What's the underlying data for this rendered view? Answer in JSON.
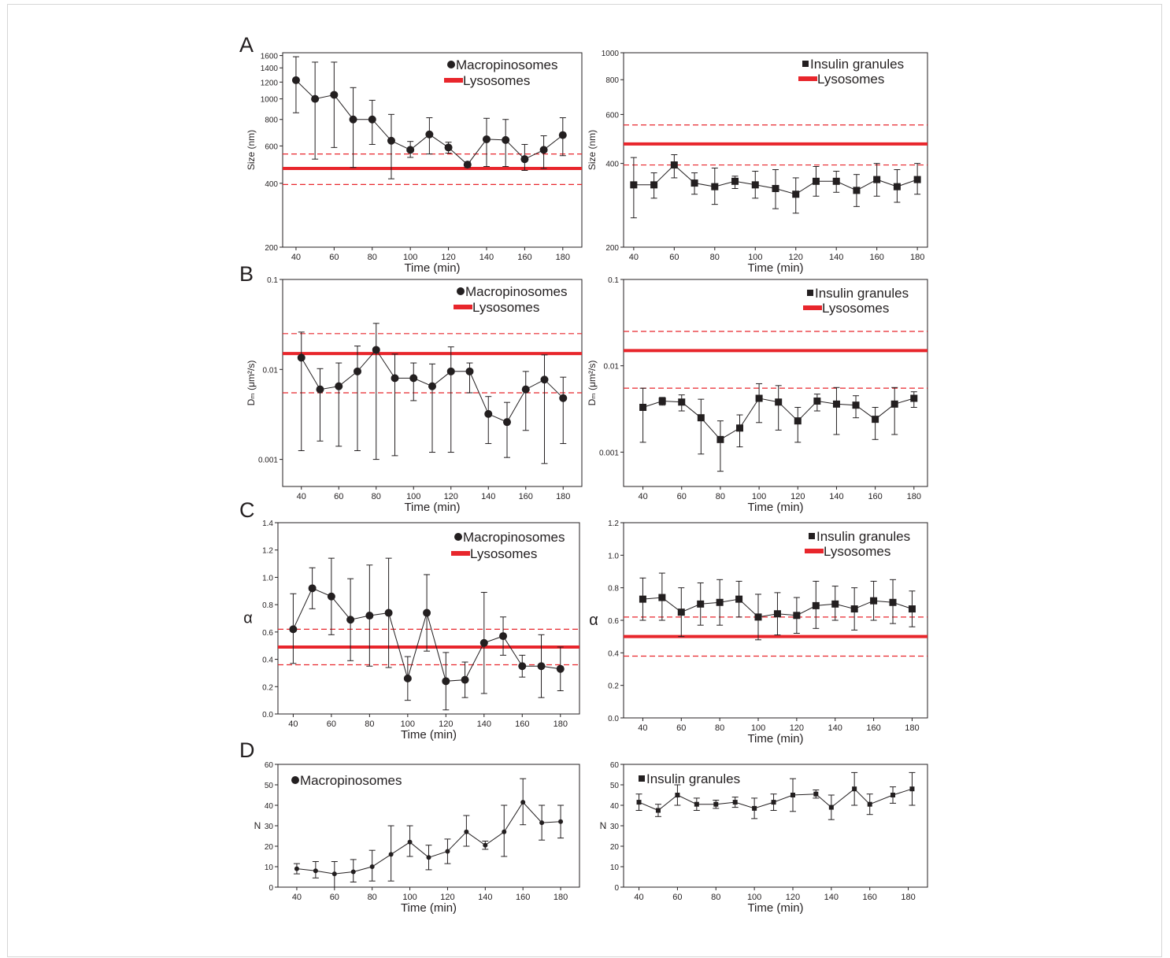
{
  "figure": {
    "panel_letters": [
      "A",
      "B",
      "C",
      "D"
    ],
    "colors": {
      "axis": "#231f20",
      "data": "#231f20",
      "lysosome": "#e8262c",
      "frame_border": "#d6d6d6"
    }
  },
  "chart_data": [
    {
      "id": "A-left",
      "panel": "A",
      "type": "line",
      "marker": "circle",
      "xlabel": "Time (min)",
      "ylabel": "Size (nm)",
      "yscale": "log",
      "xlim": [
        33,
        190
      ],
      "ylim": [
        200,
        1650
      ],
      "xticks": [
        40,
        60,
        80,
        100,
        120,
        140,
        160,
        180
      ],
      "yticks": [
        200,
        400,
        600,
        800,
        1000,
        1200,
        1400,
        1600
      ],
      "legend": [
        {
          "marker": "circle",
          "label": "Macropinosomes"
        },
        {
          "marker": "redbar",
          "label": "Lysosomes"
        }
      ],
      "lysosome": {
        "mean": 470,
        "lower": 395,
        "upper": 550
      },
      "series": [
        {
          "name": "Macropinosomes",
          "x": [
            40,
            50,
            60,
            70,
            80,
            90,
            100,
            110,
            120,
            130,
            140,
            150,
            160,
            170,
            180
          ],
          "y": [
            1225,
            1000,
            1045,
            800,
            800,
            635,
            575,
            680,
            590,
            490,
            645,
            640,
            520,
            575,
            675
          ],
          "err_low": [
            860,
            520,
            590,
            475,
            610,
            420,
            530,
            550,
            555,
            475,
            480,
            480,
            460,
            470,
            540
          ],
          "err_high": [
            1580,
            1490,
            1490,
            1130,
            985,
            845,
            630,
            815,
            625,
            505,
            810,
            800,
            610,
            670,
            815
          ]
        }
      ]
    },
    {
      "id": "A-right",
      "panel": "A",
      "type": "line",
      "marker": "square",
      "xlabel": "Time (min)",
      "ylabel": "Size (nm)",
      "yscale": "log",
      "xlim": [
        35,
        185
      ],
      "ylim": [
        200,
        1000
      ],
      "xticks": [
        40,
        60,
        80,
        100,
        120,
        140,
        160,
        180
      ],
      "yticks": [
        200,
        400,
        600,
        800,
        1000
      ],
      "legend": [
        {
          "marker": "square",
          "label": "Insulin granules"
        },
        {
          "marker": "redbar",
          "label": "Lysosomes"
        }
      ],
      "lysosome": {
        "mean": 470,
        "lower": 395,
        "upper": 550
      },
      "series": [
        {
          "name": "Insulin granules",
          "x": [
            40,
            50,
            60,
            70,
            80,
            90,
            100,
            110,
            120,
            130,
            140,
            150,
            160,
            170,
            180
          ],
          "y": [
            335,
            335,
            395,
            340,
            330,
            345,
            335,
            325,
            310,
            345,
            345,
            320,
            350,
            330,
            350
          ],
          "err_low": [
            255,
            300,
            355,
            310,
            285,
            325,
            300,
            275,
            265,
            305,
            315,
            280,
            305,
            290,
            310
          ],
          "err_high": [
            420,
            370,
            430,
            370,
            385,
            360,
            375,
            380,
            355,
            390,
            375,
            365,
            400,
            380,
            400
          ]
        }
      ]
    },
    {
      "id": "B-left",
      "panel": "B",
      "type": "line",
      "marker": "circle",
      "xlabel": "Time (min)",
      "ylabel": "Dₘ (μm²/s)",
      "yscale": "log",
      "xlim": [
        30,
        190
      ],
      "ylim": [
        0.0005,
        0.1
      ],
      "xticks": [
        40,
        60,
        80,
        100,
        120,
        140,
        160,
        180
      ],
      "yticks": [
        0.001,
        0.01,
        0.1
      ],
      "yticklabels": [
        "0.001",
        "0.01",
        "0.1"
      ],
      "legend": [
        {
          "marker": "circle",
          "label": "Macropinosomes"
        },
        {
          "marker": "redbar",
          "label": "Lysosomes"
        }
      ],
      "lysosome": {
        "mean": 0.015,
        "lower": 0.0055,
        "upper": 0.025
      },
      "series": [
        {
          "name": "Macropinosomes",
          "x": [
            40,
            50,
            60,
            70,
            80,
            90,
            100,
            110,
            120,
            130,
            140,
            150,
            160,
            170,
            180
          ],
          "y": [
            0.0135,
            0.006,
            0.0065,
            0.0095,
            0.0165,
            0.008,
            0.008,
            0.0065,
            0.0095,
            0.0095,
            0.0032,
            0.0026,
            0.006,
            0.0077,
            0.0048
          ],
          "err_low": [
            0.00125,
            0.0016,
            0.0014,
            0.00125,
            0.001,
            0.0011,
            0.0045,
            0.0012,
            0.0012,
            0.0055,
            0.0015,
            0.00105,
            0.0021,
            0.0009,
            0.0015
          ],
          "err_high": [
            0.026,
            0.0102,
            0.0118,
            0.0182,
            0.0325,
            0.0148,
            0.0118,
            0.0115,
            0.0178,
            0.0118,
            0.005,
            0.0043,
            0.0095,
            0.0145,
            0.0082
          ]
        }
      ]
    },
    {
      "id": "B-right",
      "panel": "B",
      "type": "line",
      "marker": "square",
      "xlabel": "Time (min)",
      "ylabel": "Dₘ (μm²/s)",
      "yscale": "log",
      "xlim": [
        30,
        187
      ],
      "ylim": [
        0.0004,
        0.1
      ],
      "xticks": [
        40,
        60,
        80,
        100,
        120,
        140,
        160,
        180
      ],
      "yticks": [
        0.001,
        0.01,
        0.1
      ],
      "yticklabels": [
        "0.001",
        "0.01",
        "0.1"
      ],
      "legend": [
        {
          "marker": "square",
          "label": "Insulin granules"
        },
        {
          "marker": "redbar",
          "label": "Lysosomes"
        }
      ],
      "lysosome": {
        "mean": 0.015,
        "lower": 0.0055,
        "upper": 0.025
      },
      "series": [
        {
          "name": "Insulin granules",
          "x": [
            40,
            50,
            60,
            70,
            80,
            90,
            100,
            110,
            120,
            130,
            140,
            150,
            160,
            170,
            180
          ],
          "y": [
            0.0033,
            0.0039,
            0.0038,
            0.0025,
            0.0014,
            0.0019,
            0.0042,
            0.0038,
            0.0023,
            0.0039,
            0.0036,
            0.0035,
            0.0024,
            0.0036,
            0.0042
          ],
          "err_low": [
            0.0013,
            0.0035,
            0.003,
            0.00095,
            0.0006,
            0.00115,
            0.0022,
            0.0018,
            0.0013,
            0.003,
            0.0016,
            0.0025,
            0.0014,
            0.0016,
            0.0033
          ],
          "err_high": [
            0.0055,
            0.0043,
            0.0046,
            0.0041,
            0.0023,
            0.0027,
            0.0062,
            0.0059,
            0.0033,
            0.0047,
            0.0056,
            0.0045,
            0.0033,
            0.0056,
            0.005
          ]
        }
      ]
    },
    {
      "id": "C-left",
      "panel": "C",
      "type": "line",
      "marker": "circle",
      "xlabel": "Time (min)",
      "ylabel": "α",
      "yscale": "linear",
      "xlim": [
        32,
        190
      ],
      "ylim": [
        0,
        1.4
      ],
      "xticks": [
        40,
        60,
        80,
        100,
        120,
        140,
        160,
        180
      ],
      "yticks": [
        0.0,
        0.2,
        0.4,
        0.6,
        0.8,
        1.0,
        1.2,
        1.4
      ],
      "yticklabels": [
        "0.0",
        "0.2",
        "0.4",
        "0.6",
        "0.8",
        "1.0",
        "1.2",
        "1.4"
      ],
      "legend": [
        {
          "marker": "circle",
          "label": "Macropinosomes"
        },
        {
          "marker": "redbar",
          "label": "Lysosomes"
        }
      ],
      "lysosome": {
        "mean": 0.49,
        "lower": 0.36,
        "upper": 0.62
      },
      "series": [
        {
          "name": "Macropinosomes",
          "x": [
            40,
            50,
            60,
            70,
            80,
            90,
            100,
            110,
            120,
            130,
            140,
            150,
            160,
            170,
            180
          ],
          "y": [
            0.62,
            0.92,
            0.86,
            0.69,
            0.72,
            0.74,
            0.26,
            0.74,
            0.24,
            0.25,
            0.52,
            0.57,
            0.35,
            0.35,
            0.33
          ],
          "err_low": [
            0.37,
            0.77,
            0.58,
            0.39,
            0.35,
            0.34,
            0.1,
            0.46,
            0.03,
            0.12,
            0.15,
            0.43,
            0.27,
            0.12,
            0.17
          ],
          "err_high": [
            0.88,
            1.07,
            1.14,
            0.99,
            1.09,
            1.14,
            0.42,
            1.02,
            0.45,
            0.38,
            0.89,
            0.71,
            0.43,
            0.58,
            0.49
          ]
        }
      ]
    },
    {
      "id": "C-right",
      "panel": "C",
      "type": "line",
      "marker": "square",
      "xlabel": "Time (min)",
      "ylabel": "α",
      "yscale": "linear",
      "xlim": [
        30,
        188
      ],
      "ylim": [
        0,
        1.2
      ],
      "xticks": [
        40,
        60,
        80,
        100,
        120,
        140,
        160,
        180
      ],
      "yticks": [
        0.0,
        0.2,
        0.4,
        0.6,
        0.8,
        1.0,
        1.2
      ],
      "yticklabels": [
        "0.0",
        "0.2",
        "0.4",
        "0.6",
        "0.8",
        "1.0",
        "1.2"
      ],
      "legend": [
        {
          "marker": "square",
          "label": "Insulin granules"
        },
        {
          "marker": "redbar",
          "label": "Lysosomes"
        }
      ],
      "lysosome": {
        "mean": 0.5,
        "lower": 0.38,
        "upper": 0.62
      },
      "series": [
        {
          "name": "Insulin granules",
          "x": [
            40,
            50,
            60,
            70,
            80,
            90,
            100,
            110,
            120,
            130,
            140,
            150,
            160,
            170,
            180
          ],
          "y": [
            0.73,
            0.74,
            0.65,
            0.7,
            0.71,
            0.73,
            0.62,
            0.64,
            0.63,
            0.69,
            0.7,
            0.67,
            0.72,
            0.71,
            0.67
          ],
          "err_low": [
            0.6,
            0.6,
            0.5,
            0.57,
            0.57,
            0.62,
            0.48,
            0.51,
            0.52,
            0.55,
            0.6,
            0.54,
            0.6,
            0.58,
            0.56
          ],
          "err_high": [
            0.86,
            0.89,
            0.8,
            0.83,
            0.85,
            0.84,
            0.76,
            0.77,
            0.74,
            0.84,
            0.81,
            0.8,
            0.84,
            0.85,
            0.78
          ]
        }
      ]
    },
    {
      "id": "D-left",
      "panel": "D",
      "type": "line",
      "marker": "dot",
      "xlabel": "Time (min)",
      "ylabel": "N",
      "yscale": "linear",
      "xlim": [
        30,
        190
      ],
      "ylim": [
        0,
        60
      ],
      "xticks": [
        40,
        60,
        80,
        100,
        120,
        140,
        160,
        180
      ],
      "yticks": [
        0,
        10,
        20,
        30,
        40,
        50,
        60
      ],
      "legend": [
        {
          "marker": "circle",
          "label": "Macropinosomes"
        }
      ],
      "series": [
        {
          "name": "Macropinosomes",
          "x": [
            40,
            50,
            60,
            70,
            80,
            90,
            100,
            110,
            120,
            130,
            140,
            150,
            160,
            170,
            180
          ],
          "y": [
            9,
            8,
            6.5,
            7.5,
            10,
            16,
            22,
            14.5,
            17.5,
            27,
            20.5,
            27,
            41.5,
            31.5,
            32
          ],
          "err_low": [
            6.5,
            4.5,
            0,
            2.5,
            3,
            3,
            15,
            8.5,
            11.5,
            20,
            18.5,
            15,
            30.5,
            23,
            24
          ],
          "err_high": [
            11.5,
            12.5,
            12.5,
            13.5,
            18,
            30,
            30,
            20.5,
            23.5,
            35,
            22.5,
            40,
            53,
            40,
            40
          ]
        }
      ]
    },
    {
      "id": "D-right",
      "panel": "D",
      "type": "line",
      "marker": "square",
      "xlabel": "Time (min)",
      "ylabel": "N",
      "yscale": "linear",
      "xlim": [
        32,
        190
      ],
      "ylim": [
        0,
        60
      ],
      "xticks": [
        40,
        60,
        80,
        100,
        120,
        140,
        160,
        180
      ],
      "yticks": [
        0,
        10,
        20,
        30,
        40,
        50,
        60
      ],
      "legend": [
        {
          "marker": "square",
          "label": "Insulin granules"
        }
      ],
      "series": [
        {
          "name": "Insulin granules",
          "x": [
            40,
            50,
            60,
            70,
            80,
            90,
            100,
            110,
            120,
            132,
            140,
            152,
            160,
            172,
            182
          ],
          "y": [
            41.5,
            37.5,
            45,
            40.5,
            40.5,
            41.5,
            38.5,
            41.5,
            45,
            45.5,
            39,
            48,
            40.5,
            45,
            48
          ],
          "err_low": [
            37.5,
            34.5,
            40,
            37.5,
            38.5,
            39,
            33.5,
            37.5,
            37,
            43.5,
            33,
            40,
            35.5,
            41,
            40
          ],
          "err_high": [
            45.5,
            40.5,
            50,
            43.5,
            42.5,
            44,
            43.5,
            45.5,
            53,
            47.5,
            45,
            56,
            45.5,
            49,
            56
          ]
        }
      ]
    }
  ]
}
